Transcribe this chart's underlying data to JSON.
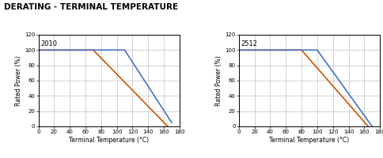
{
  "title": "DERATING - TERMINAL TEMPERATURE",
  "charts": [
    {
      "label": "2010",
      "orange": {
        "x": [
          0,
          70,
          165
        ],
        "y": [
          100,
          100,
          0
        ]
      },
      "blue": {
        "x": [
          0,
          110,
          170
        ],
        "y": [
          100,
          100,
          5
        ]
      }
    },
    {
      "label": "2512",
      "orange": {
        "x": [
          0,
          80,
          165
        ],
        "y": [
          100,
          100,
          0
        ]
      },
      "blue": {
        "x": [
          0,
          100,
          170
        ],
        "y": [
          100,
          100,
          0
        ]
      }
    }
  ],
  "orange_color": "#cc5500",
  "blue_color": "#4472c4",
  "xlabel": "Terminal Temperature (°C)",
  "ylabel": "Rated Power (%)",
  "xlim": [
    0,
    180
  ],
  "ylim": [
    0,
    120
  ],
  "xticks": [
    0,
    20,
    40,
    60,
    80,
    100,
    120,
    140,
    160,
    180
  ],
  "yticks": [
    0,
    20,
    40,
    60,
    80,
    100,
    120
  ],
  "title_fontsize": 7.5,
  "axis_label_fontsize": 5.5,
  "tick_fontsize": 5,
  "chart_label_fontsize": 6,
  "line_width": 1.2,
  "grid_color": "#b0b0b0",
  "grid_lw": 0.4
}
